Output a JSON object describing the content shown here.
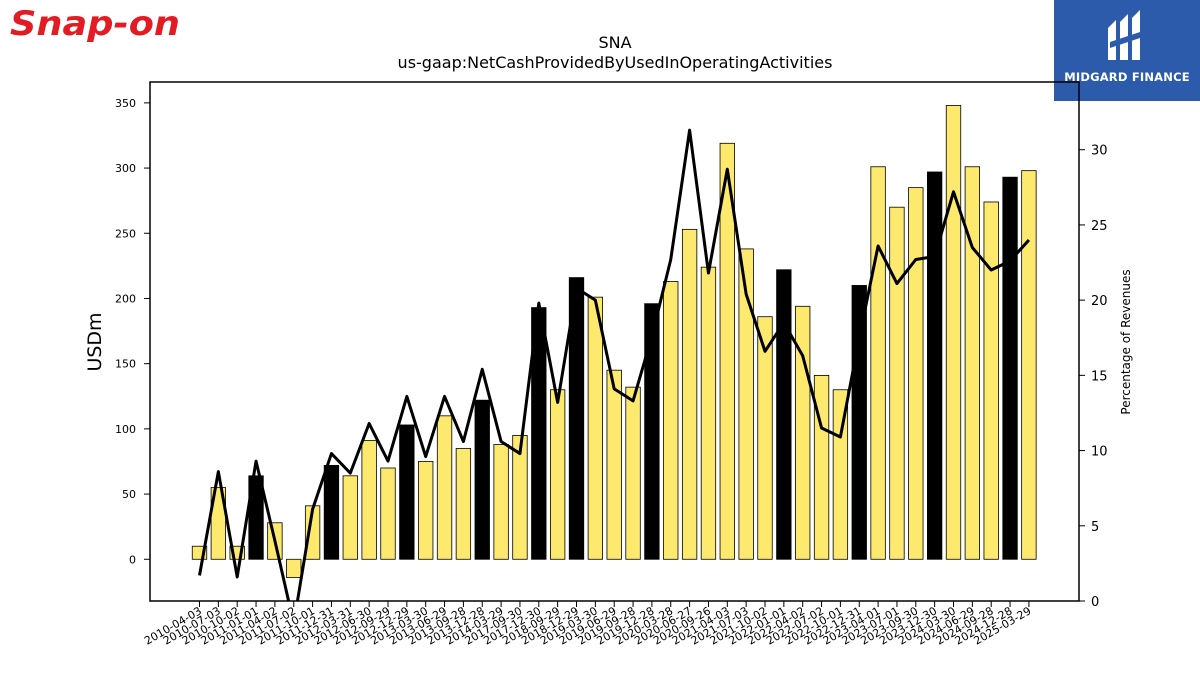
{
  "brand": {
    "left_logo_text": "Snap-on",
    "left_logo_color": "#e31b23",
    "right_logo_text": "MIDGARD FINANCE",
    "right_logo_bg": "#2c5bab"
  },
  "chart_data": {
    "type": "bar",
    "title": "SNA",
    "subtitle": "us-gaap:NetCashProvidedByUsedInOperatingActivities",
    "ylabel": "USDm",
    "y2label": "Percentage of Revenues",
    "ylim": [
      -32,
      366
    ],
    "y2lim": [
      0,
      34.5
    ],
    "yticks": [
      0,
      50,
      100,
      150,
      200,
      250,
      300,
      350
    ],
    "y2ticks": [
      0,
      5,
      10,
      15,
      20,
      25,
      30
    ],
    "colors": {
      "bar_highlight": "#fde96e",
      "bar_alt": "#000000",
      "line": "#000000"
    },
    "categories": [
      "2010-04-03",
      "2010-07-03",
      "2010-10-02",
      "2011-01-01",
      "2011-04-02",
      "2011-07-02",
      "2011-10-01",
      "2011-12-31",
      "2012-03-31",
      "2012-06-30",
      "2012-09-29",
      "2012-12-29",
      "2013-03-30",
      "2013-06-29",
      "2013-09-28",
      "2013-12-28",
      "2014-03-29",
      "2017-09-30",
      "2017-12-30",
      "2018-09-29",
      "2018-12-29",
      "2019-03-30",
      "2019-06-29",
      "2019-09-28",
      "2019-12-28",
      "2020-03-28",
      "2020-06-27",
      "2020-09-26",
      "2021-04-03",
      "2021-07-03",
      "2021-10-02",
      "2022-01-01",
      "2022-04-02",
      "2022-07-02",
      "2022-10-01",
      "2022-12-31",
      "2023-04-01",
      "2023-07-01",
      "2023-09-30",
      "2023-12-30",
      "2024-03-30",
      "2024-06-29",
      "2024-09-28",
      "2024-12-28",
      "2025-03-29"
    ],
    "values": [
      10,
      55,
      10,
      64,
      28,
      -14,
      41,
      72,
      64,
      91,
      70,
      103,
      75,
      110,
      85,
      122,
      88,
      95,
      193,
      130,
      216,
      201,
      145,
      132,
      196,
      213,
      253,
      224,
      319,
      238,
      186,
      222,
      194,
      141,
      130,
      210,
      301,
      270,
      285,
      297,
      348,
      301,
      274,
      293,
      298
    ],
    "bar_fill": [
      "highlight",
      "highlight",
      "highlight",
      "alt",
      "highlight",
      "highlight",
      "highlight",
      "alt",
      "highlight",
      "highlight",
      "highlight",
      "alt",
      "highlight",
      "highlight",
      "highlight",
      "alt",
      "highlight",
      "highlight",
      "alt",
      "highlight",
      "alt",
      "highlight",
      "highlight",
      "highlight",
      "alt",
      "highlight",
      "highlight",
      "highlight",
      "highlight",
      "highlight",
      "highlight",
      "alt",
      "highlight",
      "highlight",
      "highlight",
      "alt",
      "highlight",
      "highlight",
      "highlight",
      "alt",
      "highlight",
      "highlight",
      "highlight",
      "alt",
      "highlight"
    ],
    "pct_of_revenue": [
      1.7,
      8.6,
      1.6,
      9.3,
      4.0,
      -1.5,
      6.1,
      9.8,
      8.5,
      11.8,
      9.3,
      13.6,
      9.6,
      13.6,
      10.6,
      15.4,
      10.6,
      9.8,
      19.8,
      13.2,
      20.8,
      20.0,
      14.1,
      13.3,
      17.6,
      22.7,
      31.3,
      21.8,
      28.7,
      20.4,
      16.6,
      18.5,
      16.3,
      11.5,
      10.9,
      17.5,
      23.6,
      21.1,
      22.7,
      22.9,
      27.2,
      23.5,
      22.0,
      22.6,
      24.0
    ]
  }
}
